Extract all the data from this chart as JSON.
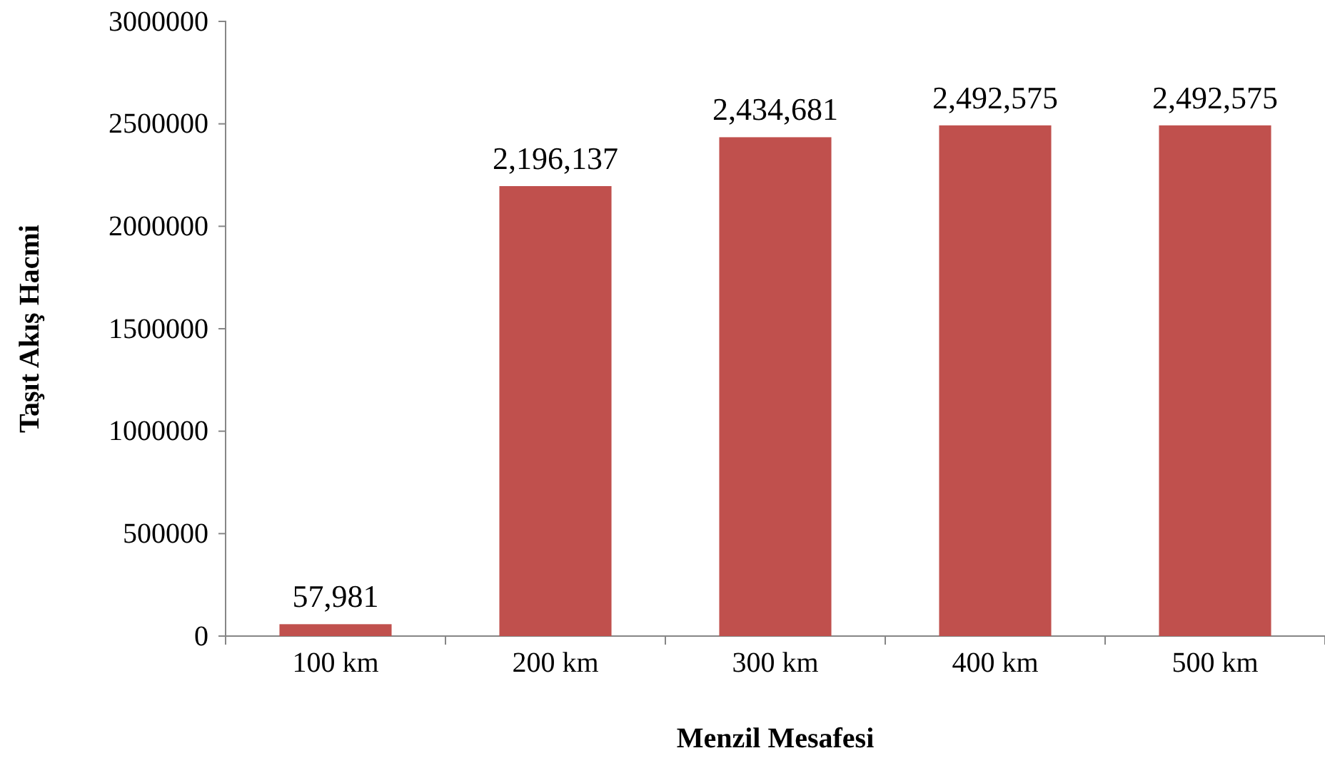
{
  "chart_data": {
    "type": "bar",
    "xlabel": "Menzil Mesafesi",
    "ylabel": "Taşıt Akış Hacmi",
    "categories": [
      "100 km",
      "200 km",
      "300 km",
      "400 km",
      "500 km"
    ],
    "values": [
      57981,
      2196137,
      2434681,
      2492575,
      2492575
    ],
    "color": "#c0504d",
    "ylim": [
      0,
      3000000
    ],
    "yticks": [
      0,
      500000,
      1000000,
      1500000,
      2000000,
      2500000,
      3000000
    ],
    "value_labels": [
      "57,981",
      "2,196,137",
      "2,434,681",
      "2,492,575",
      "2,492,575"
    ]
  }
}
